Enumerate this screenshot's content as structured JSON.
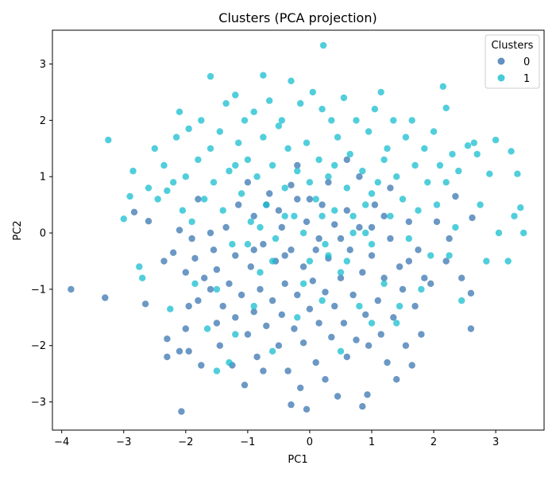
{
  "chart_data": {
    "type": "scatter",
    "title": "Clusters (PCA projection)",
    "xlabel": "PC1",
    "ylabel": "PC2",
    "xlim": [
      -4.15,
      3.78
    ],
    "ylim": [
      -3.5,
      3.6
    ],
    "xticks": [
      -4,
      -3,
      -2,
      -1,
      0,
      1,
      2,
      3
    ],
    "yticks": [
      -3,
      -2,
      -1,
      0,
      1,
      2,
      3
    ],
    "xtick_labels": [
      "−4",
      "−3",
      "−2",
      "−1",
      "0",
      "1",
      "2",
      "3"
    ],
    "ytick_labels": [
      "−3",
      "−2",
      "−1",
      "0",
      "1",
      "2",
      "3"
    ],
    "grid": false,
    "legend": {
      "title": "Clusters",
      "placement": "top-right"
    },
    "series": [
      {
        "name": "0",
        "color": "#3a75b0",
        "points": [
          [
            -3.85,
            -1.0
          ],
          [
            -3.3,
            -1.15
          ],
          [
            -2.83,
            0.37
          ],
          [
            -2.65,
            -1.26
          ],
          [
            -2.6,
            0.21
          ],
          [
            -2.35,
            -0.5
          ],
          [
            -2.3,
            -1.88
          ],
          [
            -2.3,
            -2.2
          ],
          [
            -2.2,
            -0.35
          ],
          [
            -2.1,
            -2.1
          ],
          [
            -2.07,
            -3.17
          ],
          [
            -2.0,
            -1.7
          ],
          [
            -2.0,
            -0.7
          ],
          [
            -1.95,
            -1.3
          ],
          [
            -1.95,
            -2.1
          ],
          [
            -1.9,
            -0.1
          ],
          [
            -1.85,
            -0.45
          ],
          [
            -1.8,
            -1.2
          ],
          [
            -1.75,
            -2.35
          ],
          [
            -1.7,
            -0.8
          ],
          [
            -1.6,
            -1.0
          ],
          [
            -1.55,
            -0.3
          ],
          [
            -1.5,
            -1.6
          ],
          [
            -1.5,
            -0.65
          ],
          [
            -1.45,
            -2.0
          ],
          [
            -1.4,
            -1.3
          ],
          [
            -1.35,
            0.1
          ],
          [
            -1.3,
            -0.9
          ],
          [
            -1.25,
            -2.35
          ],
          [
            -1.2,
            -1.5
          ],
          [
            -1.2,
            -0.4
          ],
          [
            -1.15,
            0.5
          ],
          [
            -1.1,
            -1.1
          ],
          [
            -1.05,
            -2.7
          ],
          [
            -1.0,
            -1.8
          ],
          [
            -0.95,
            -0.6
          ],
          [
            -0.9,
            0.3
          ],
          [
            -0.9,
            -1.4
          ],
          [
            -0.85,
            -2.2
          ],
          [
            -0.8,
            -1.0
          ],
          [
            -0.75,
            -0.2
          ],
          [
            -0.75,
            -2.45
          ],
          [
            -0.7,
            -1.65
          ],
          [
            -0.65,
            0.7
          ],
          [
            -0.6,
            -1.2
          ],
          [
            -0.55,
            -0.5
          ],
          [
            -0.5,
            -2.0
          ],
          [
            -0.45,
            0.1
          ],
          [
            -0.45,
            -1.45
          ],
          [
            -0.4,
            -0.9
          ],
          [
            -0.35,
            -2.45
          ],
          [
            -0.3,
            -0.3
          ],
          [
            -0.3,
            -3.05
          ],
          [
            -0.25,
            -1.7
          ],
          [
            -0.2,
            0.6
          ],
          [
            -0.2,
            -1.1
          ],
          [
            -0.15,
            -2.75
          ],
          [
            -0.1,
            -0.6
          ],
          [
            -0.1,
            -1.95
          ],
          [
            -0.05,
            0.2
          ],
          [
            -0.05,
            -3.13
          ],
          [
            0.0,
            -1.35
          ],
          [
            0.05,
            -0.85
          ],
          [
            0.1,
            -2.3
          ],
          [
            0.15,
            -0.1
          ],
          [
            0.15,
            -1.6
          ],
          [
            0.2,
            0.5
          ],
          [
            0.25,
            -1.05
          ],
          [
            0.25,
            -2.6
          ],
          [
            0.3,
            -0.45
          ],
          [
            0.35,
            -1.85
          ],
          [
            0.4,
            0.15
          ],
          [
            0.4,
            -1.3
          ],
          [
            0.45,
            -2.9
          ],
          [
            0.5,
            -0.8
          ],
          [
            0.55,
            -1.6
          ],
          [
            0.6,
            0.4
          ],
          [
            0.6,
            -2.2
          ],
          [
            0.65,
            -0.3
          ],
          [
            0.7,
            -1.1
          ],
          [
            0.75,
            -1.9
          ],
          [
            0.8,
            0.1
          ],
          [
            0.85,
            -0.7
          ],
          [
            0.85,
            -3.08
          ],
          [
            0.9,
            -1.45
          ],
          [
            0.93,
            -2.87
          ],
          [
            0.95,
            -2.0
          ],
          [
            1.0,
            -0.4
          ],
          [
            1.05,
            0.5
          ],
          [
            1.1,
            -1.2
          ],
          [
            1.15,
            -1.8
          ],
          [
            1.2,
            -0.8
          ],
          [
            1.25,
            -2.3
          ],
          [
            1.3,
            -0.1
          ],
          [
            1.35,
            -1.5
          ],
          [
            1.4,
            -2.6
          ],
          [
            1.45,
            -0.6
          ],
          [
            1.5,
            -1.0
          ],
          [
            1.55,
            -2.0
          ],
          [
            1.6,
            0.2
          ],
          [
            1.65,
            -2.35
          ],
          [
            1.7,
            -1.3
          ],
          [
            1.75,
            -0.3
          ],
          [
            1.8,
            -1.8
          ],
          [
            1.85,
            -0.8
          ],
          [
            1.95,
            -0.9
          ],
          [
            2.05,
            0.2
          ],
          [
            2.2,
            -0.5
          ],
          [
            2.25,
            -0.1
          ],
          [
            2.35,
            0.65
          ],
          [
            2.45,
            -0.8
          ],
          [
            2.6,
            -1.07
          ],
          [
            2.6,
            -1.7
          ],
          [
            2.62,
            0.27
          ],
          [
            -1.6,
            0.0
          ],
          [
            -0.5,
            0.4
          ],
          [
            0.8,
            1.0
          ],
          [
            0.3,
            0.9
          ],
          [
            -0.2,
            1.2
          ],
          [
            -1.0,
            0.9
          ],
          [
            1.3,
            0.8
          ],
          [
            0.6,
            1.3
          ],
          [
            -0.4,
            -0.4
          ],
          [
            0.1,
            -0.3
          ],
          [
            -0.9,
            -0.3
          ],
          [
            1.2,
            0.3
          ],
          [
            -1.8,
            0.6
          ],
          [
            -2.1,
            0.05
          ],
          [
            0.0,
            0.6
          ],
          [
            0.5,
            -0.1
          ],
          [
            -0.7,
            0.5
          ],
          [
            1.6,
            -0.5
          ],
          [
            1.0,
            0.1
          ],
          [
            -0.3,
            0.85
          ]
        ]
      },
      {
        "name": "1",
        "color": "#17becf",
        "points": [
          [
            -3.25,
            1.65
          ],
          [
            -3.0,
            0.25
          ],
          [
            -2.9,
            0.65
          ],
          [
            -2.85,
            1.1
          ],
          [
            -2.75,
            -0.6
          ],
          [
            -2.7,
            -0.8
          ],
          [
            -2.6,
            0.8
          ],
          [
            -2.5,
            1.5
          ],
          [
            -2.45,
            0.6
          ],
          [
            -2.35,
            1.2
          ],
          [
            -2.3,
            0.75
          ],
          [
            -2.25,
            -1.35
          ],
          [
            -2.2,
            0.9
          ],
          [
            -2.15,
            1.7
          ],
          [
            -2.1,
            2.15
          ],
          [
            -2.05,
            0.4
          ],
          [
            -2.0,
            1.0
          ],
          [
            -1.95,
            1.85
          ],
          [
            -1.9,
            0.2
          ],
          [
            -1.85,
            -0.9
          ],
          [
            -1.8,
            1.3
          ],
          [
            -1.75,
            2.0
          ],
          [
            -1.7,
            0.6
          ],
          [
            -1.65,
            -1.7
          ],
          [
            -1.6,
            2.78
          ],
          [
            -1.6,
            1.5
          ],
          [
            -1.55,
            0.9
          ],
          [
            -1.5,
            -2.45
          ],
          [
            -1.45,
            1.8
          ],
          [
            -1.4,
            0.4
          ],
          [
            -1.35,
            2.3
          ],
          [
            -1.3,
            1.1
          ],
          [
            -1.3,
            -2.3
          ],
          [
            -1.25,
            -0.2
          ],
          [
            -1.2,
            2.45
          ],
          [
            -1.15,
            1.6
          ],
          [
            -1.1,
            0.7
          ],
          [
            -1.05,
            2.0
          ],
          [
            -1.0,
            1.3
          ],
          [
            -0.95,
            0.2
          ],
          [
            -0.9,
            2.15
          ],
          [
            -0.85,
            1.0
          ],
          [
            -0.8,
            -0.7
          ],
          [
            -0.75,
            2.8
          ],
          [
            -0.75,
            1.7
          ],
          [
            -0.7,
            0.5
          ],
          [
            -0.65,
            2.35
          ],
          [
            -0.6,
            1.2
          ],
          [
            -0.55,
            -0.1
          ],
          [
            -0.5,
            1.9
          ],
          [
            -0.45,
            2.0
          ],
          [
            -0.4,
            0.8
          ],
          [
            -0.35,
            1.5
          ],
          [
            -0.3,
            2.7
          ],
          [
            -0.25,
            0.3
          ],
          [
            -0.2,
            1.1
          ],
          [
            -0.15,
            2.3
          ],
          [
            -0.1,
            0.0
          ],
          [
            -0.05,
            1.6
          ],
          [
            0.0,
            -0.5
          ],
          [
            0.05,
            2.5
          ],
          [
            0.1,
            0.6
          ],
          [
            0.15,
            1.3
          ],
          [
            0.2,
            2.2
          ],
          [
            0.22,
            3.33
          ],
          [
            0.25,
            -0.2
          ],
          [
            0.3,
            1.0
          ],
          [
            0.35,
            2.0
          ],
          [
            0.4,
            0.4
          ],
          [
            0.45,
            1.7
          ],
          [
            0.5,
            -0.7
          ],
          [
            0.55,
            2.4
          ],
          [
            0.6,
            0.8
          ],
          [
            0.65,
            1.4
          ],
          [
            0.7,
            0.0
          ],
          [
            0.75,
            2.0
          ],
          [
            0.8,
            -1.3
          ],
          [
            0.85,
            1.1
          ],
          [
            0.9,
            0.5
          ],
          [
            0.95,
            1.8
          ],
          [
            1.0,
            -0.2
          ],
          [
            1.05,
            2.2
          ],
          [
            1.1,
            0.9
          ],
          [
            1.15,
            2.5
          ],
          [
            1.2,
            -0.9
          ],
          [
            1.25,
            1.5
          ],
          [
            1.3,
            0.3
          ],
          [
            1.35,
            2.0
          ],
          [
            1.4,
            1.0
          ],
          [
            1.45,
            -1.3
          ],
          [
            1.5,
            0.6
          ],
          [
            1.55,
            1.7
          ],
          [
            1.6,
            -0.1
          ],
          [
            1.65,
            2.0
          ],
          [
            1.7,
            1.2
          ],
          [
            1.75,
            0.4
          ],
          [
            1.8,
            -1.0
          ],
          [
            1.85,
            1.5
          ],
          [
            1.9,
            0.9
          ],
          [
            1.95,
            -0.4
          ],
          [
            2.0,
            1.8
          ],
          [
            2.05,
            0.5
          ],
          [
            2.1,
            1.2
          ],
          [
            2.15,
            2.6
          ],
          [
            2.2,
            0.9
          ],
          [
            2.2,
            2.22
          ],
          [
            2.25,
            -0.4
          ],
          [
            2.3,
            1.4
          ],
          [
            2.35,
            0.1
          ],
          [
            2.4,
            1.1
          ],
          [
            2.45,
            -1.2
          ],
          [
            2.55,
            1.55
          ],
          [
            2.65,
            1.6
          ],
          [
            2.7,
            1.4
          ],
          [
            2.75,
            0.5
          ],
          [
            2.85,
            -0.5
          ],
          [
            3.0,
            1.65
          ],
          [
            3.05,
            0.0
          ],
          [
            3.2,
            -0.5
          ],
          [
            3.25,
            1.45
          ],
          [
            3.3,
            0.3
          ],
          [
            3.35,
            1.05
          ],
          [
            3.4,
            0.45
          ],
          [
            3.45,
            0.0
          ],
          [
            2.9,
            1.05
          ],
          [
            -0.6,
            -2.1
          ],
          [
            0.5,
            -2.1
          ],
          [
            -1.2,
            -1.8
          ],
          [
            1.4,
            -1.6
          ],
          [
            -0.2,
            -1.5
          ],
          [
            0.2,
            -1.2
          ],
          [
            -1.5,
            -1.0
          ],
          [
            1.0,
            -1.6
          ],
          [
            -0.9,
            -1.3
          ],
          [
            0.0,
            0.9
          ],
          [
            0.4,
            1.2
          ],
          [
            -0.4,
            0.3
          ],
          [
            0.7,
            0.3
          ],
          [
            -0.8,
            0.1
          ],
          [
            0.9,
            0.0
          ],
          [
            1.2,
            1.3
          ],
          [
            -1.2,
            1.2
          ],
          [
            0.3,
            -0.4
          ],
          [
            -0.1,
            -0.9
          ],
          [
            0.6,
            -0.5
          ],
          [
            -0.6,
            -0.5
          ],
          [
            1.0,
            0.7
          ],
          [
            -1.0,
            -0.2
          ],
          [
            0.2,
            0.3
          ]
        ]
      }
    ]
  }
}
